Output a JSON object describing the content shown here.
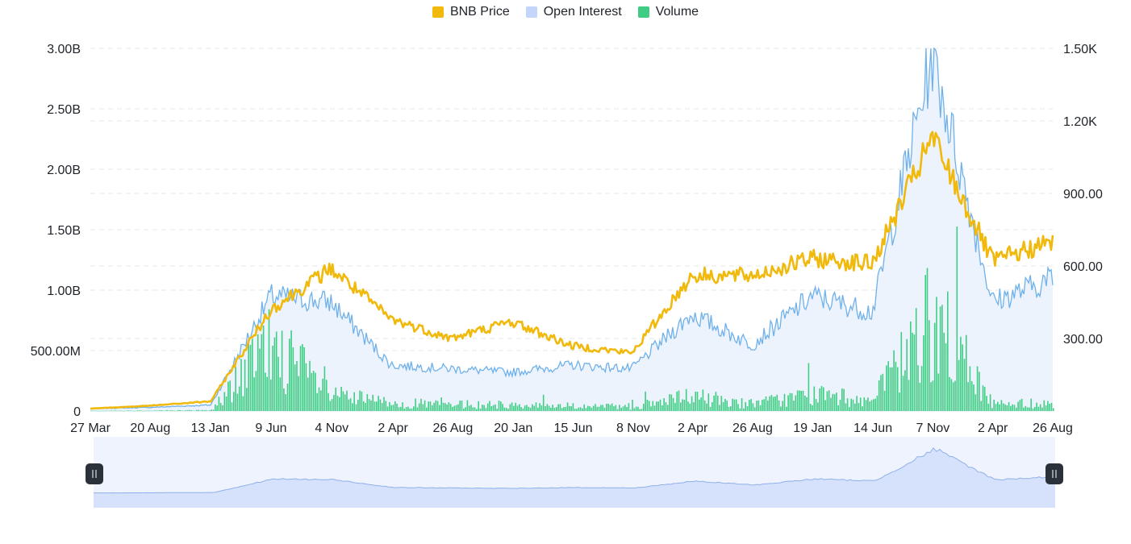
{
  "legend": {
    "items": [
      {
        "label": "BNB Price",
        "color": "#f0b90b"
      },
      {
        "label": "Open Interest",
        "color": "#c3d5fb"
      },
      {
        "label": "Volume",
        "color": "#3fcd84"
      }
    ]
  },
  "chart_data": {
    "type": "line",
    "title": "",
    "grid": true,
    "legend_position": "top-center",
    "left_axis": {
      "ticks": [
        "0",
        "500.00M",
        "1.00B",
        "1.50B",
        "2.00B",
        "2.50B",
        "3.00B"
      ],
      "range": [
        0,
        3000000000
      ]
    },
    "right_axis": {
      "ticks": [
        "300.00",
        "600.00",
        "900.00",
        "1.20K",
        "1.50K"
      ],
      "range": [
        0,
        1500
      ]
    },
    "x_ticks": [
      "27 Mar",
      "20 Aug",
      "13 Jan",
      "9 Jun",
      "4 Nov",
      "2 Apr",
      "26 Aug",
      "20 Jan",
      "15 Jun",
      "8 Nov",
      "2 Apr",
      "26 Aug",
      "19 Jan",
      "14 Jun",
      "7 Nov",
      "2 Apr",
      "26 Aug"
    ],
    "x": [
      "2019-03-27",
      "2019-08-20",
      "2020-01-13",
      "2020-06-09",
      "2020-11-04",
      "2021-04-02",
      "2021-08-26",
      "2022-01-20",
      "2022-06-15",
      "2022-11-08",
      "2023-04-02",
      "2023-08-26",
      "2024-01-19",
      "2024-06-14",
      "2024-11-07",
      "2025-04-02",
      "2025-08-26"
    ],
    "series": [
      {
        "name": "BNB Price",
        "axis": "right",
        "color": "#f0b90b",
        "values": [
          10,
          22,
          40,
          420,
          590,
          380,
          300,
          370,
          270,
          240,
          560,
          560,
          630,
          610,
          1130,
          620,
          700
        ]
      },
      {
        "name": "Open Interest",
        "axis": "left",
        "color": "#6fb1ea",
        "values": [
          20000000,
          30000000,
          50000000,
          950000000,
          900000000,
          380000000,
          350000000,
          320000000,
          380000000,
          350000000,
          800000000,
          550000000,
          950000000,
          820000000,
          2950000000,
          900000000,
          1100000000
        ]
      },
      {
        "name": "Volume",
        "axis": "left",
        "color": "#3fcd84",
        "values": [
          3000000,
          5000000,
          8000000,
          650000000,
          150000000,
          80000000,
          60000000,
          60000000,
          50000000,
          40000000,
          140000000,
          70000000,
          160000000,
          100000000,
          900000000,
          70000000,
          80000000
        ]
      }
    ],
    "navigator": {
      "series": "Open Interest"
    }
  }
}
